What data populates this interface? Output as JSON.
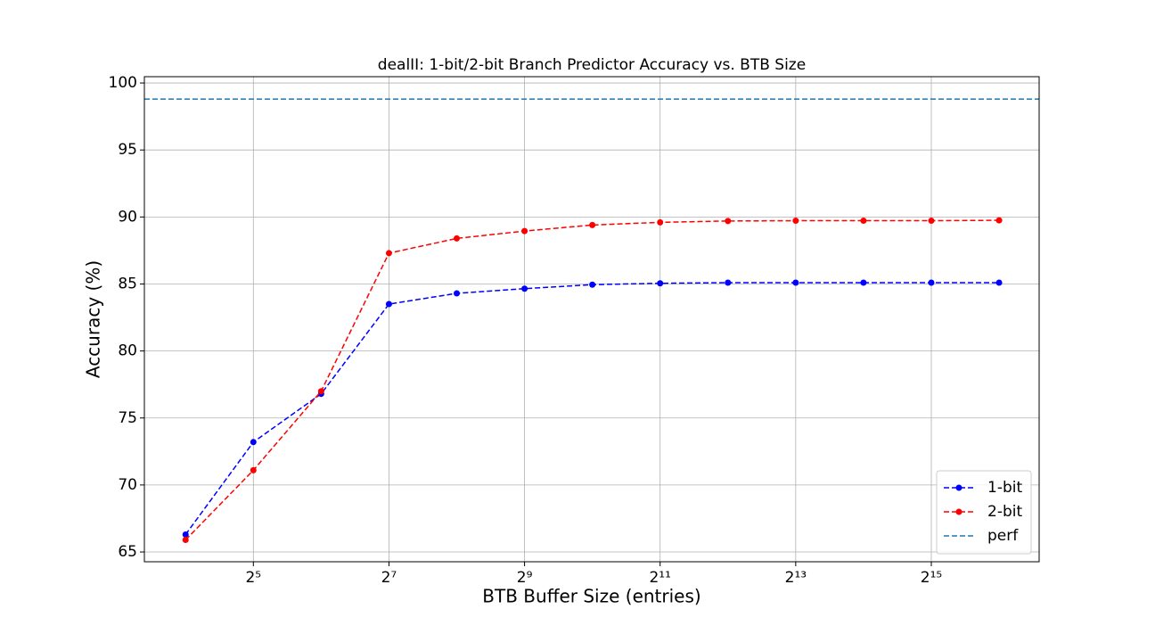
{
  "chart_data": {
    "type": "line",
    "title": "dealII: 1-bit/2-bit Branch Predictor Accuracy vs. BTB Size",
    "xlabel": "BTB Buffer Size (entries)",
    "ylabel": "Accuracy (%)",
    "x": [
      16,
      32,
      64,
      128,
      256,
      512,
      1024,
      2048,
      4096,
      8192,
      16384,
      32768,
      65536
    ],
    "series": [
      {
        "name": "1-bit",
        "color": "#0000ff",
        "values": [
          66.3,
          73.2,
          76.8,
          83.5,
          84.3,
          84.65,
          84.95,
          85.05,
          85.1,
          85.1,
          85.1,
          85.1,
          85.1
        ]
      },
      {
        "name": "2-bit",
        "color": "#ff0000",
        "values": [
          65.9,
          71.1,
          77.0,
          87.3,
          88.4,
          88.95,
          89.4,
          89.6,
          89.7,
          89.72,
          89.72,
          89.72,
          89.75
        ]
      }
    ],
    "reference_lines": [
      {
        "name": "perf",
        "value": 98.8,
        "color": "#1f77b4"
      }
    ],
    "xscale": "log2",
    "xlim": [
      10.5,
      98700
    ],
    "xticks": [
      {
        "value": 32,
        "label": "2⁵"
      },
      {
        "value": 128,
        "label": "2⁷"
      },
      {
        "value": 512,
        "label": "2⁹"
      },
      {
        "value": 2048,
        "label": "2¹¹"
      },
      {
        "value": 8192,
        "label": "2¹³"
      },
      {
        "value": 32768,
        "label": "2¹⁵"
      }
    ],
    "ylim": [
      64.27,
      100.47
    ],
    "yticks": [
      65,
      70,
      75,
      80,
      85,
      90,
      95,
      100
    ],
    "grid": true,
    "legend": "lower right"
  }
}
